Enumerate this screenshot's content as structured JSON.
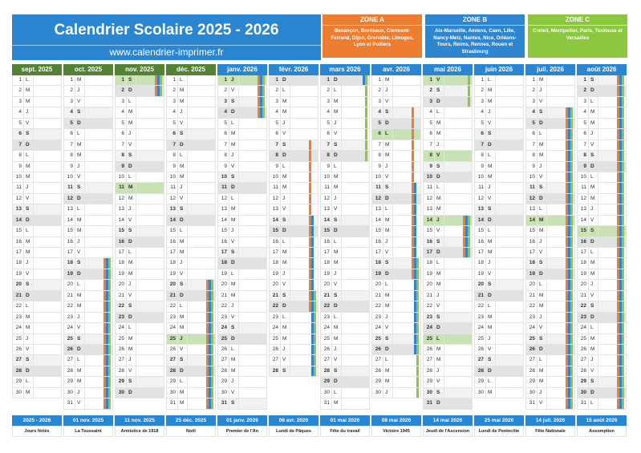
{
  "header": {
    "title": "Calendrier Scolaire 2025 - 2026",
    "website": "www.calendrier-imprimer.fr"
  },
  "colors": {
    "zone_a": "#ed7d31",
    "zone_b": "#2e86d1",
    "zone_c": "#8dc63f",
    "autumn_header": "#548235",
    "spring_header": "#2a86d1",
    "holiday": "#c8e2b6"
  },
  "zones": [
    {
      "key": "A",
      "title": "ZONE A",
      "cities": "Besançon, Bordeaux, Clermont-Ferrand, Dijon, Grenoble, Limoges, Lyon et Poitiers",
      "color": "#ed7d31"
    },
    {
      "key": "B",
      "title": "ZONE B",
      "cities": "Aix-Marseille, Amiens, Caen, Lille, Nancy-Metz, Nantes, Nice, Orléans-Tours, Reims, Rennes, Rouen et Strasbourg",
      "color": "#2e86d1"
    },
    {
      "key": "C",
      "title": "ZONE C",
      "cities": "Créteil, Montpellier, Paris, Toulouse et Versailles",
      "color": "#8dc63f"
    }
  ],
  "weekday_letters": [
    "L",
    "M",
    "M",
    "J",
    "V",
    "S",
    "D"
  ],
  "months": [
    {
      "label": "sept. 2025",
      "y": 2025,
      "m": 9,
      "days": 30,
      "first": 0,
      "header": "autumn"
    },
    {
      "label": "oct. 2025",
      "y": 2025,
      "m": 10,
      "days": 31,
      "first": 2,
      "header": "autumn"
    },
    {
      "label": "nov. 2025",
      "y": 2025,
      "m": 11,
      "days": 30,
      "first": 5,
      "header": "autumn"
    },
    {
      "label": "déc. 2025",
      "y": 2025,
      "m": 12,
      "days": 31,
      "first": 0,
      "header": "autumn"
    },
    {
      "label": "janv. 2026",
      "y": 2026,
      "m": 1,
      "days": 31,
      "first": 3,
      "header": "spring"
    },
    {
      "label": "févr. 2026",
      "y": 2026,
      "m": 2,
      "days": 28,
      "first": 6,
      "header": "spring"
    },
    {
      "label": "mars 2026",
      "y": 2026,
      "m": 3,
      "days": 31,
      "first": 6,
      "header": "spring"
    },
    {
      "label": "avr. 2026",
      "y": 2026,
      "m": 4,
      "days": 30,
      "first": 2,
      "header": "spring"
    },
    {
      "label": "mai 2026",
      "y": 2026,
      "m": 5,
      "days": 31,
      "first": 4,
      "header": "spring"
    },
    {
      "label": "juin 2026",
      "y": 2026,
      "m": 6,
      "days": 30,
      "first": 0,
      "header": "spring"
    },
    {
      "label": "juil. 2026",
      "y": 2026,
      "m": 7,
      "days": 31,
      "first": 2,
      "header": "spring"
    },
    {
      "label": "août 2026",
      "y": 2026,
      "m": 8,
      "days": 31,
      "first": 5,
      "header": "spring"
    }
  ],
  "vacations": [
    {
      "zones": [
        "A",
        "B",
        "C"
      ],
      "from": "2025-10-18",
      "to": "2025-11-02"
    },
    {
      "zones": [
        "A",
        "B",
        "C"
      ],
      "from": "2025-12-20",
      "to": "2026-01-04"
    },
    {
      "zones": [
        "A"
      ],
      "from": "2026-02-07",
      "to": "2026-02-22"
    },
    {
      "zones": [
        "B"
      ],
      "from": "2026-02-14",
      "to": "2026-03-01"
    },
    {
      "zones": [
        "C"
      ],
      "from": "2026-02-21",
      "to": "2026-03-08"
    },
    {
      "zones": [
        "A"
      ],
      "from": "2026-04-04",
      "to": "2026-04-19"
    },
    {
      "zones": [
        "B"
      ],
      "from": "2026-04-11",
      "to": "2026-04-26"
    },
    {
      "zones": [
        "C"
      ],
      "from": "2026-04-18",
      "to": "2026-05-03"
    },
    {
      "zones": [
        "A",
        "B",
        "C"
      ],
      "from": "2026-05-14",
      "to": "2026-05-17"
    },
    {
      "zones": [
        "A",
        "B",
        "C"
      ],
      "from": "2026-07-04",
      "to": "2026-08-31"
    }
  ],
  "holidays": [
    {
      "date": "2025-11-01",
      "label": "01 nov. 2025",
      "name": "La Toussaint"
    },
    {
      "date": "2025-11-11",
      "label": "11 nov. 2025",
      "name": "Armistice de 1918"
    },
    {
      "date": "2025-12-25",
      "label": "25 déc. 2025",
      "name": "Noël"
    },
    {
      "date": "2026-01-01",
      "label": "01 janv. 2026",
      "name": "Premier de l'An"
    },
    {
      "date": "2026-04-06",
      "label": "06 avr. 2026",
      "name": "Lundi de Pâques"
    },
    {
      "date": "2026-05-01",
      "label": "01 mai 2026",
      "name": "Fête du travail"
    },
    {
      "date": "2026-05-08",
      "label": "08 mai 2026",
      "name": "Victoire 1945"
    },
    {
      "date": "2026-05-14",
      "label": "14 mai 2026",
      "name": "Jeudi de l'Ascension"
    },
    {
      "date": "2026-05-25",
      "label": "25 mai 2026",
      "name": "Lundi de Pentecôte"
    },
    {
      "date": "2026-07-14",
      "label": "14 juil. 2026",
      "name": "Fête Nationale"
    },
    {
      "date": "2026-08-15",
      "label": "15 août 2026",
      "name": "Assomption"
    }
  ],
  "holidays_legend": {
    "label": "2025 - 2026",
    "name": "Jours fériés"
  }
}
